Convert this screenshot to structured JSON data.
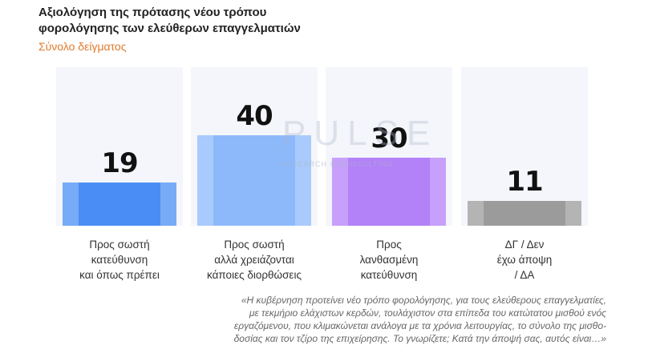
{
  "chart_data": {
    "type": "bar",
    "title": "Αξιολόγηση της πρότασης νέου τρόπου\nφορολόγησης των ελεύθερων επαγγελματιών",
    "subtitle": "Σύνολο δείγματος",
    "categories": [
      "Προς σωστή\nκατεύθυνση\nκαι όπως πρέπει",
      "Προς σωστή\nαλλά χρειάζονται\nκάποιες διορθώσεις",
      "Προς\nλανθασμένη\nκατεύθυνση",
      "ΔΓ / Δεν\nέχω άποψη\n/ ΔΑ"
    ],
    "values": [
      19,
      40,
      30,
      11
    ],
    "colors": [
      "#4a8ef5",
      "#8db9fb",
      "#b381f8",
      "#9b9b9b"
    ],
    "watermark": {
      "brand": "PULSE",
      "tagline": "RESEARCH & CONSULTING"
    },
    "footnote": [
      "«Η κυβέρνηση προτείνει νέο τρόπο φορολόγησης, για τους ελεύθερους επαγγελματίες,",
      "με τεκμήριο ελάχιστων κερδών, τουλάχιστον στα επίπεδα του κατώτατου μισθού ενός",
      "εργαζόμενου, που κλιμακώνεται ανάλογα με τα χρόνια λειτουργίας, το σύνολο της μισθο-",
      "δοσίας και τον τζίρο της επιχείρησης. Το γνωρίζετε; Κατά την άποψή σας, αυτός είναι…»"
    ]
  }
}
